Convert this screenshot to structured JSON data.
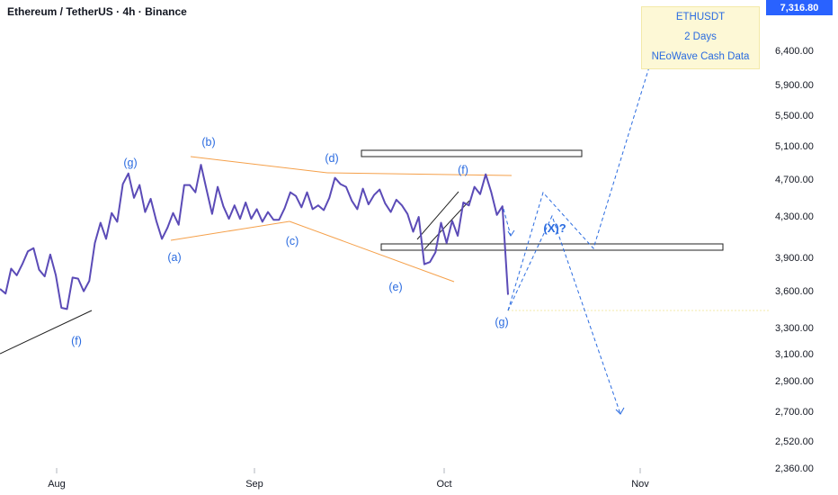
{
  "header": {
    "title": "Ethereum / TetherUS · 4h · Binance"
  },
  "infobox": {
    "line1": "ETHUSDT",
    "line2": "2 Days",
    "line3": "NEoWave Cash Data"
  },
  "price_tag": "7,316.80",
  "colors": {
    "price": "#5b4bb7",
    "accent": "#2a6be0",
    "trend": "#f5a04a",
    "tag": "#2962ff"
  },
  "chart_data": {
    "type": "line",
    "title": "Ethereum / TetherUS · 4h · Binance",
    "xlabel": "",
    "ylabel": "",
    "x_ticks": [
      "Aug",
      "Sep",
      "Oct",
      "Nov"
    ],
    "y_ticks": [
      "7,316.80",
      "6,400.00",
      "5,900.00",
      "5,500.00",
      "5,100.00",
      "4,700.00",
      "4,300.00",
      "3,900.00",
      "3,600.00",
      "3,300.00",
      "3,100.00",
      "2,900.00",
      "2,700.00",
      "2,520.00",
      "2,360.00"
    ],
    "scale": "log",
    "grid": false,
    "series": [
      {
        "values": [
          3620,
          3580,
          3800,
          3740,
          3840,
          3960,
          3990,
          3790,
          3730,
          3930,
          3740,
          3460,
          3450,
          3720,
          3710,
          3600,
          3690,
          4040,
          4240,
          4080,
          4340,
          4250,
          4650,
          4770,
          4500,
          4640,
          4350,
          4490,
          4260,
          4080,
          4190,
          4340,
          4220,
          4640,
          4640,
          4560,
          4870,
          4590,
          4330,
          4620,
          4410,
          4280,
          4420,
          4280,
          4450,
          4280,
          4380,
          4250,
          4350,
          4270,
          4270,
          4390,
          4560,
          4520,
          4400,
          4560,
          4380,
          4420,
          4370,
          4500,
          4720,
          4650,
          4620,
          4470,
          4380,
          4600,
          4430,
          4530,
          4590,
          4440,
          4350,
          4480,
          4420,
          4330,
          4150,
          4300,
          3840,
          3860,
          3950,
          4240,
          4040,
          4260,
          4110,
          4450,
          4420,
          4620,
          4540,
          4760,
          4560,
          4320,
          4410,
          3570
        ]
      }
    ],
    "wave_labels": [
      "(f)",
      "(g)",
      "(a)",
      "(b)",
      "(c)",
      "(d)",
      "(e)",
      "(f)",
      "(g)",
      "(X)?"
    ]
  }
}
